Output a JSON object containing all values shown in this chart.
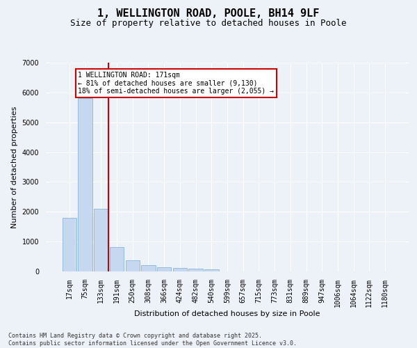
{
  "title1": "1, WELLINGTON ROAD, POOLE, BH14 9LF",
  "title2": "Size of property relative to detached houses in Poole",
  "xlabel": "Distribution of detached houses by size in Poole",
  "ylabel": "Number of detached properties",
  "categories": [
    "17sqm",
    "75sqm",
    "133sqm",
    "191sqm",
    "250sqm",
    "308sqm",
    "366sqm",
    "424sqm",
    "482sqm",
    "540sqm",
    "599sqm",
    "657sqm",
    "715sqm",
    "773sqm",
    "831sqm",
    "889sqm",
    "947sqm",
    "1006sqm",
    "1064sqm",
    "1122sqm",
    "1180sqm"
  ],
  "values": [
    1800,
    5820,
    2090,
    820,
    370,
    210,
    130,
    110,
    90,
    60,
    0,
    0,
    0,
    0,
    0,
    0,
    0,
    0,
    0,
    0,
    0
  ],
  "bar_color": "#c5d8ef",
  "bar_edge_color": "#7aadd4",
  "vline_index": 2,
  "vline_color": "#cc0000",
  "annotation_line1": "1 WELLINGTON ROAD: 171sqm",
  "annotation_line2": "← 81% of detached houses are smaller (9,130)",
  "annotation_line3": "18% of semi-detached houses are larger (2,055) →",
  "annotation_box_color": "#cc0000",
  "background_color": "#edf2f9",
  "plot_bg_color": "#edf2f9",
  "grid_color": "#ffffff",
  "footer1": "Contains HM Land Registry data © Crown copyright and database right 2025.",
  "footer2": "Contains public sector information licensed under the Open Government Licence v3.0.",
  "ylim": [
    0,
    7000
  ],
  "yticks": [
    0,
    1000,
    2000,
    3000,
    4000,
    5000,
    6000,
    7000
  ],
  "title_fontsize": 11,
  "subtitle_fontsize": 9,
  "label_fontsize": 8,
  "tick_fontsize": 7,
  "annot_fontsize": 7,
  "footer_fontsize": 6
}
